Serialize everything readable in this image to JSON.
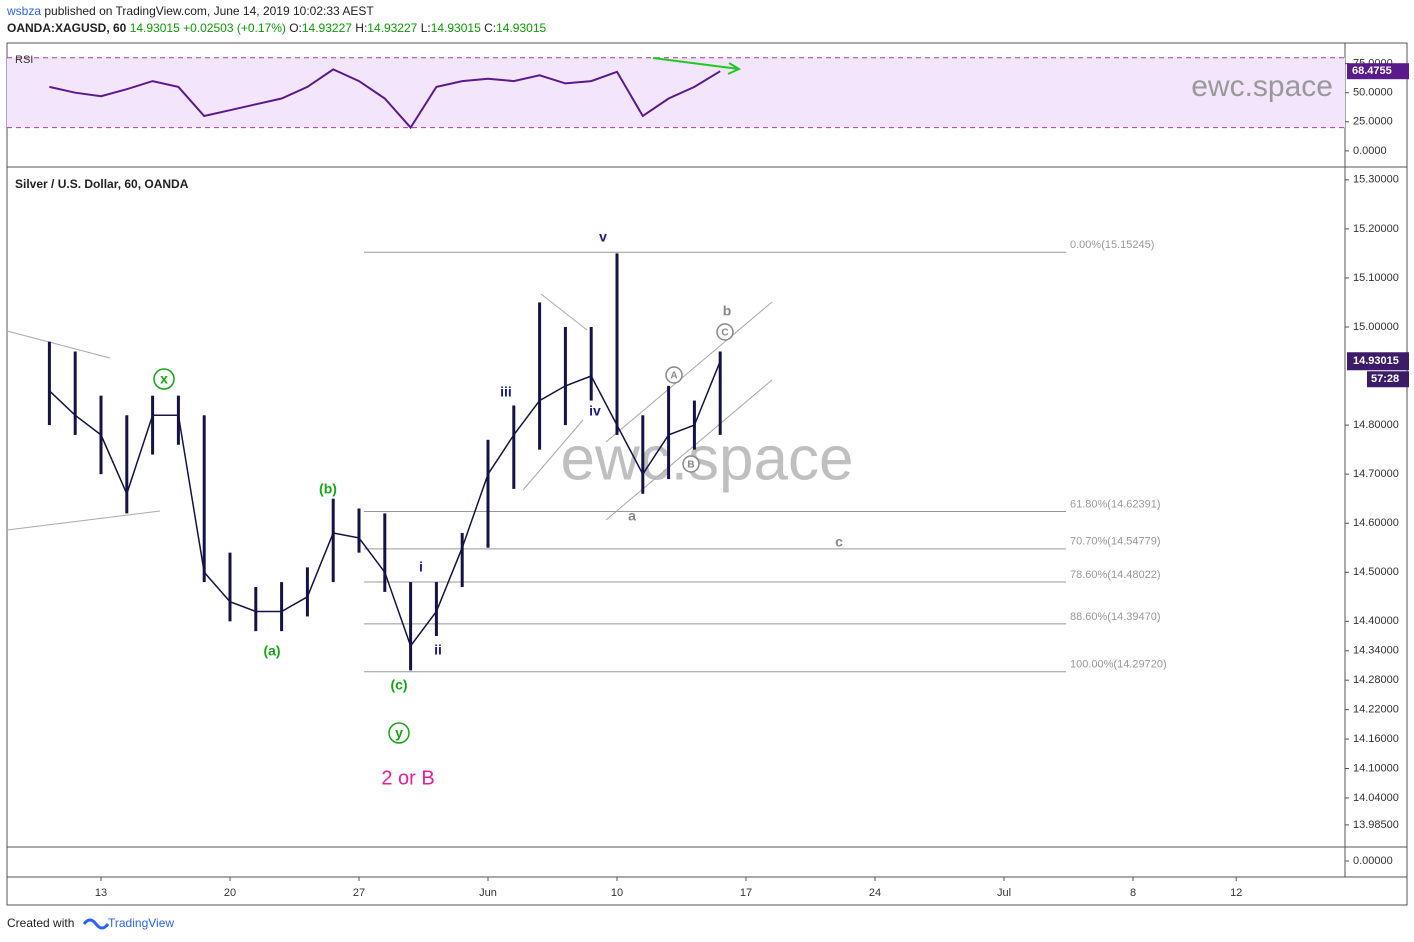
{
  "header": {
    "publisher": "wsbza",
    "published": "published on TradingView.com, June 14, 2019 10:02:33 AEST",
    "symbol": "OANDA:XAGUSD, 60",
    "last": "14.93015",
    "change": "+0.02503 (+0.17%)",
    "ohlc": [
      {
        "label": "O:",
        "value": "14.93227"
      },
      {
        "label": "H:",
        "value": "14.93227"
      },
      {
        "label": "L:",
        "value": "14.93015"
      },
      {
        "label": "C:",
        "value": "14.93015"
      }
    ]
  },
  "chart_data": [
    {
      "type": "line",
      "title": "RSI",
      "color": "#5b1a8c",
      "band": [
        20,
        80
      ],
      "band_color": "#f3e5fc",
      "ylim": [
        -13,
        91
      ],
      "yticks": [
        {
          "value": 0,
          "label": "0.0000"
        },
        {
          "value": 25,
          "label": "25.0000"
        },
        {
          "value": 50,
          "label": "50.0000"
        },
        {
          "value": 75,
          "label": "75.0000"
        }
      ],
      "last_label": "68.4755",
      "watermark": "ewc.space",
      "values": [
        55,
        50,
        47,
        53,
        60,
        55,
        30,
        35,
        40,
        45,
        55,
        70,
        60,
        45,
        20,
        55,
        60,
        62,
        60,
        65,
        58,
        60,
        68,
        30,
        45,
        55,
        68.4755,
        null,
        null,
        null,
        null,
        null,
        null,
        null,
        null,
        null,
        null,
        null,
        null,
        null,
        null,
        null,
        null,
        null,
        null,
        null,
        null,
        null,
        null,
        null
      ]
    },
    {
      "type": "candles",
      "title": "Silver / U.S. Dollar, 60, OANDA",
      "color": "#131347",
      "categories": [
        null,
        null,
        "13",
        null,
        null,
        null,
        null,
        "20",
        null,
        null,
        null,
        null,
        "27",
        null,
        null,
        null,
        null,
        "Jun",
        null,
        null,
        null,
        null,
        "10",
        null,
        null,
        null,
        null,
        "17",
        null,
        null,
        null,
        null,
        "24",
        null,
        null,
        null,
        null,
        "Jul",
        null,
        null,
        null,
        null,
        "8",
        null,
        null,
        null,
        "12",
        null,
        null,
        null
      ],
      "ylim": [
        13.94,
        15.32
      ],
      "yticks": [
        {
          "value": 15.3,
          "label": "15.30000"
        },
        {
          "value": 15.2,
          "label": "15.20000"
        },
        {
          "value": 15.1,
          "label": "15.10000"
        },
        {
          "value": 15.0,
          "label": "15.00000"
        },
        {
          "value": 14.8,
          "label": "14.80000"
        },
        {
          "value": 14.7,
          "label": "14.70000"
        },
        {
          "value": 14.6,
          "label": "14.60000"
        },
        {
          "value": 14.5,
          "label": "14.50000"
        },
        {
          "value": 14.4,
          "label": "14.40000"
        },
        {
          "value": 14.34,
          "label": "14.34000"
        },
        {
          "value": 14.28,
          "label": "14.28000"
        },
        {
          "value": 14.22,
          "label": "14.22000"
        },
        {
          "value": 14.16,
          "label": "14.16000"
        },
        {
          "value": 14.1,
          "label": "14.10000"
        },
        {
          "value": 14.04,
          "label": "14.04000"
        },
        {
          "value": 13.985,
          "label": "13.98500"
        }
      ],
      "grid": false,
      "high": [
        14.97,
        14.95,
        14.86,
        14.82,
        14.86,
        14.86,
        14.82,
        14.54,
        14.47,
        14.48,
        14.51,
        14.65,
        14.63,
        14.62,
        14.48,
        14.48,
        14.58,
        14.77,
        14.84,
        15.05,
        15.0,
        15.0,
        15.15,
        14.82,
        14.88,
        14.85,
        14.95,
        null,
        null,
        null,
        null,
        null,
        null,
        null,
        null,
        null,
        null,
        null,
        null,
        null,
        null,
        null,
        null,
        null,
        null,
        null,
        null,
        null,
        null,
        null
      ],
      "low": [
        14.8,
        14.78,
        14.7,
        14.62,
        14.74,
        14.76,
        14.48,
        14.4,
        14.38,
        14.38,
        14.41,
        14.48,
        14.54,
        14.46,
        14.3,
        14.37,
        14.47,
        14.55,
        14.67,
        14.75,
        14.8,
        14.85,
        14.78,
        14.66,
        14.69,
        14.75,
        14.78,
        null,
        null,
        null,
        null,
        null,
        null,
        null,
        null,
        null,
        null,
        null,
        null,
        null,
        null,
        null,
        null,
        null,
        null,
        null,
        null,
        null,
        null,
        null
      ],
      "close": [
        14.87,
        14.82,
        14.78,
        14.66,
        14.82,
        14.82,
        14.5,
        14.44,
        14.42,
        14.42,
        14.45,
        14.58,
        14.57,
        14.5,
        14.35,
        14.42,
        14.55,
        14.7,
        14.78,
        14.85,
        14.88,
        14.9,
        14.8,
        14.7,
        14.78,
        14.8,
        14.93015,
        null,
        null,
        null,
        null,
        null,
        null,
        null,
        null,
        null,
        null,
        null,
        null,
        null,
        null,
        null,
        null,
        null,
        null,
        null,
        null,
        null,
        null,
        null
      ],
      "last_label": "14.93015",
      "countdown": "57:28",
      "fib_levels": [
        {
          "value": 15.15245,
          "label": "0.00%(15.15245)"
        },
        {
          "value": 14.62391,
          "label": "61.80%(14.62391)"
        },
        {
          "value": 14.54779,
          "label": "70.70%(14.54779)"
        },
        {
          "value": 14.48022,
          "label": "78.60%(14.48022)"
        },
        {
          "value": 14.3947,
          "label": "88.60%(14.39470)"
        },
        {
          "value": 14.2972,
          "label": "100.00%(14.29720)"
        }
      ],
      "annotations": [
        {
          "text": "v",
          "color": "#1a1a8c"
        },
        {
          "text": "iii",
          "color": "#1a1a8c"
        },
        {
          "text": "iv",
          "color": "#1a1a8c"
        },
        {
          "text": "i",
          "color": "#1a1a8c"
        },
        {
          "text": "ii",
          "color": "#1a1a8c"
        },
        {
          "text": "x",
          "color": "#13a813",
          "circled": true
        },
        {
          "text": "(b)",
          "color": "#13a813"
        },
        {
          "text": "(a)",
          "color": "#13a813"
        },
        {
          "text": "(c)",
          "color": "#13a813"
        },
        {
          "text": "y",
          "color": "#13a813",
          "circled": true
        },
        {
          "text": "2 or B",
          "color": "#e91e9c"
        },
        {
          "text": "b",
          "color": "#888888"
        },
        {
          "text": "C",
          "color": "#888888",
          "circled": true
        },
        {
          "text": "A",
          "color": "#888888",
          "circled": true
        },
        {
          "text": "B",
          "color": "#888888",
          "circled": true
        },
        {
          "text": "a",
          "color": "#888888"
        },
        {
          "text": "c",
          "color": "#888888"
        }
      ],
      "watermark": "ewc.space"
    },
    {
      "type": "empty",
      "yticks": [
        {
          "value": 0,
          "label": "0.00000"
        }
      ]
    }
  ],
  "footer": {
    "created": "Created with",
    "brand": "TradingView"
  }
}
